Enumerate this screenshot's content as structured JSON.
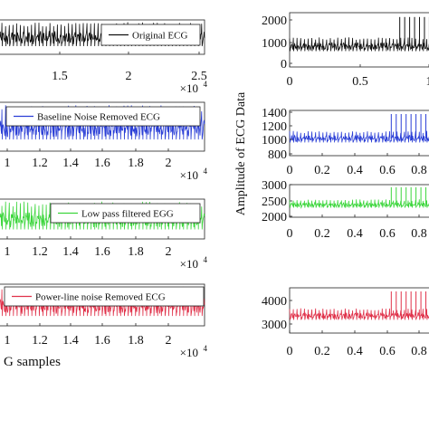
{
  "chart_data": [
    {
      "type": "line",
      "legend": "Original ECG",
      "legend_placement": "top-right",
      "color": "#111111",
      "xticks": [
        "1.5",
        "2",
        "2.5"
      ],
      "x_exponent": "×10",
      "x_exponent_power": "4",
      "xlim": [
        1.1,
        2.5
      ],
      "ylim": [
        800,
        1400
      ],
      "series": [
        {
          "x": [
            1.1,
            2.5
          ],
          "y": [
            1000,
            1000
          ]
        }
      ]
    },
    {
      "type": "line",
      "legend": "Baseline Noise Removed ECG",
      "legend_placement": "top-right",
      "color": "#2b3fd6",
      "xticks": [
        "1",
        "1.2",
        "1.4",
        "1.6",
        "1.8",
        "2"
      ],
      "x_exponent": "×10",
      "x_exponent_power": "4",
      "xlim": [
        0.95,
        2.15
      ],
      "ylim": [
        600,
        1400
      ],
      "series": [
        {
          "x": [
            0.95,
            2.15
          ],
          "y": [
            1000,
            1000
          ]
        }
      ]
    },
    {
      "type": "line",
      "legend": "Low pass filtered EGG",
      "legend_placement": "top-right",
      "color": "#3dd63d",
      "xticks": [
        "1",
        "1.2",
        "1.4",
        "1.6",
        "1.8",
        "2"
      ],
      "x_exponent": "×10",
      "x_exponent_power": "4",
      "xlim": [
        0.95,
        2.15
      ],
      "ylim": [
        600,
        1400
      ],
      "series": [
        {
          "x": [
            0.95,
            2.15
          ],
          "y": [
            1000,
            1000
          ]
        }
      ]
    },
    {
      "type": "line",
      "legend": "Power-line noise Removed ECG",
      "legend_placement": "top-right",
      "color": "#e0324a",
      "xticks": [
        "1",
        "1.2",
        "1.4",
        "1.6",
        "1.8",
        "2"
      ],
      "x_exponent": "×10",
      "x_exponent_power": "4",
      "xlabel": "G samples",
      "xlim": [
        0.95,
        2.15
      ],
      "ylim": [
        600,
        1400
      ],
      "series": [
        {
          "x": [
            0.95,
            2.15
          ],
          "y": [
            1000,
            1000
          ]
        }
      ]
    },
    {
      "type": "line",
      "color": "#111111",
      "xlim": [
        0,
        1.05
      ],
      "ylim": [
        0,
        2000
      ],
      "yticks": [
        "0",
        "1000",
        "2000"
      ],
      "xticks": [
        "0",
        "0.5",
        "1"
      ],
      "series": [
        {
          "x": [
            0,
            1.05
          ],
          "y": [
            1000,
            1000
          ]
        }
      ]
    },
    {
      "type": "line",
      "color": "#2b3fd6",
      "ylabel": "Amplitude of ECG Data",
      "xlim": [
        0,
        1.02
      ],
      "ylim": [
        800,
        1400
      ],
      "yticks": [
        "800",
        "1000",
        "1200",
        "1400"
      ],
      "xticks": [
        "0",
        "0.2",
        "0.4",
        "0.6",
        "0.8"
      ],
      "series": [
        {
          "x": [
            0,
            1.02
          ],
          "y": [
            960,
            960
          ]
        }
      ]
    },
    {
      "type": "line",
      "color": "#3dd63d",
      "xlim": [
        0,
        1.02
      ],
      "ylim": [
        1700,
        3300
      ],
      "yticks": [
        "2000",
        "2500",
        "3000"
      ],
      "xticks": [
        "0",
        "0.2",
        "0.4",
        "0.6",
        "0.8"
      ],
      "series": [
        {
          "x": [
            0,
            1.02
          ],
          "y": [
            2000,
            2000
          ]
        }
      ]
    },
    {
      "type": "line",
      "color": "#e0324a",
      "xlim": [
        0,
        1.02
      ],
      "ylim": [
        2500,
        4500
      ],
      "yticks": [
        "3000",
        "4000"
      ],
      "xticks": [
        "0",
        "0.2",
        "0.4",
        "0.6",
        "0.8"
      ],
      "series": [
        {
          "x": [
            0,
            1.02
          ],
          "y": [
            2900,
            2900
          ]
        }
      ]
    }
  ]
}
